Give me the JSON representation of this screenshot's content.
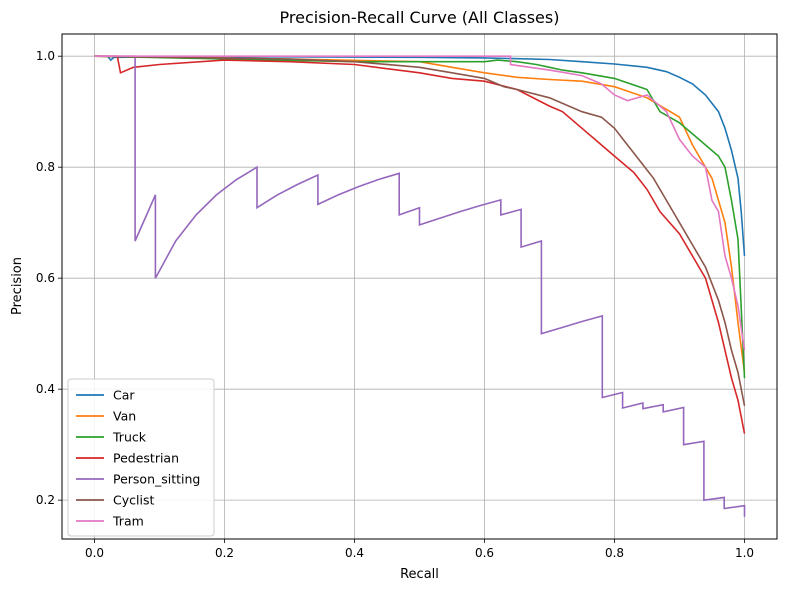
{
  "chart_data": {
    "type": "line",
    "title": "Precision-Recall Curve (All Classes)",
    "xlabel": "Recall",
    "ylabel": "Precision",
    "xlim": [
      -0.05,
      1.05
    ],
    "ylim": [
      0.13,
      1.04
    ],
    "xticks": [
      0.0,
      0.2,
      0.4,
      0.6,
      0.8,
      1.0
    ],
    "xtick_labels": [
      "0.0",
      "0.2",
      "0.4",
      "0.6",
      "0.8",
      "1.0"
    ],
    "yticks": [
      0.2,
      0.4,
      0.6,
      0.8,
      1.0
    ],
    "ytick_labels": [
      "0.2",
      "0.4",
      "0.6",
      "0.8",
      "1.0"
    ],
    "grid": true,
    "legend_position": "lower-left",
    "series": [
      {
        "name": "Car",
        "color": "#1f77b4",
        "x": [
          0.0,
          0.02,
          0.025,
          0.03,
          0.1,
          0.3,
          0.5,
          0.6,
          0.7,
          0.75,
          0.8,
          0.85,
          0.88,
          0.9,
          0.92,
          0.94,
          0.95,
          0.96,
          0.97,
          0.98,
          0.99,
          0.995,
          1.0
        ],
        "y": [
          1.0,
          1.0,
          0.993,
          0.998,
          0.999,
          0.999,
          0.998,
          0.997,
          0.994,
          0.99,
          0.986,
          0.98,
          0.972,
          0.962,
          0.95,
          0.93,
          0.915,
          0.9,
          0.87,
          0.83,
          0.78,
          0.72,
          0.64
        ]
      },
      {
        "name": "Van",
        "color": "#ff7f0e",
        "x": [
          0.0,
          0.3,
          0.5,
          0.55,
          0.6,
          0.65,
          0.7,
          0.75,
          0.8,
          0.85,
          0.9,
          0.92,
          0.95,
          0.97,
          0.98,
          0.99,
          1.0
        ],
        "y": [
          1.0,
          0.995,
          0.99,
          0.98,
          0.97,
          0.962,
          0.958,
          0.955,
          0.945,
          0.925,
          0.89,
          0.84,
          0.78,
          0.7,
          0.62,
          0.52,
          0.43
        ]
      },
      {
        "name": "Truck",
        "color": "#2ca02c",
        "x": [
          0.0,
          0.4,
          0.6,
          0.62,
          0.65,
          0.68,
          0.7,
          0.72,
          0.75,
          0.8,
          0.85,
          0.87,
          0.9,
          0.92,
          0.94,
          0.96,
          0.97,
          0.98,
          0.99,
          1.0
        ],
        "y": [
          1.0,
          0.99,
          0.99,
          0.993,
          0.99,
          0.985,
          0.98,
          0.975,
          0.97,
          0.96,
          0.94,
          0.9,
          0.88,
          0.86,
          0.84,
          0.82,
          0.8,
          0.74,
          0.67,
          0.42
        ]
      },
      {
        "name": "Pedestrian",
        "color": "#d62728",
        "x": [
          0.0,
          0.035,
          0.04,
          0.06,
          0.1,
          0.2,
          0.3,
          0.4,
          0.5,
          0.55,
          0.6,
          0.65,
          0.7,
          0.72,
          0.75,
          0.78,
          0.8,
          0.83,
          0.85,
          0.87,
          0.9,
          0.92,
          0.94,
          0.95,
          0.96,
          0.97,
          0.98,
          0.99,
          1.0
        ],
        "y": [
          1.0,
          1.0,
          0.97,
          0.98,
          0.985,
          0.993,
          0.99,
          0.985,
          0.97,
          0.96,
          0.955,
          0.94,
          0.91,
          0.9,
          0.87,
          0.84,
          0.82,
          0.79,
          0.76,
          0.72,
          0.68,
          0.64,
          0.6,
          0.56,
          0.52,
          0.47,
          0.42,
          0.38,
          0.32
        ]
      },
      {
        "name": "Person_sitting",
        "color": "#9467bd",
        "x": [
          0.0,
          0.06,
          0.0625,
          0.0625,
          0.09375,
          0.09375,
          0.125,
          0.15625,
          0.1875,
          0.21875,
          0.25,
          0.25,
          0.28125,
          0.3125,
          0.34375,
          0.34375,
          0.375,
          0.40625,
          0.4375,
          0.46875,
          0.46875,
          0.5,
          0.5,
          0.53125,
          0.5625,
          0.59375,
          0.625,
          0.625,
          0.65625,
          0.65625,
          0.6875,
          0.6875,
          0.71875,
          0.75,
          0.78125,
          0.78125,
          0.8125,
          0.8125,
          0.84375,
          0.84375,
          0.875,
          0.875,
          0.90625,
          0.90625,
          0.9375,
          0.9375,
          0.96875,
          0.96875,
          1.0,
          1.0
        ],
        "y": [
          1.0,
          1.0,
          1.0,
          0.667,
          0.75,
          0.6,
          0.667,
          0.714,
          0.75,
          0.778,
          0.8,
          0.727,
          0.75,
          0.769,
          0.786,
          0.733,
          0.75,
          0.765,
          0.778,
          0.789,
          0.714,
          0.727,
          0.696,
          0.708,
          0.72,
          0.731,
          0.741,
          0.714,
          0.724,
          0.656,
          0.667,
          0.5,
          0.511,
          0.522,
          0.532,
          0.385,
          0.394,
          0.366,
          0.375,
          0.365,
          0.372,
          0.359,
          0.367,
          0.3,
          0.306,
          0.2,
          0.205,
          0.185,
          0.19,
          0.17
        ]
      },
      {
        "name": "Cyclist",
        "color": "#8c564b",
        "x": [
          0.0,
          0.3,
          0.4,
          0.5,
          0.55,
          0.6,
          0.63,
          0.65,
          0.7,
          0.75,
          0.78,
          0.8,
          0.82,
          0.84,
          0.86,
          0.88,
          0.9,
          0.92,
          0.94,
          0.96,
          0.97,
          0.98,
          0.99,
          1.0
        ],
        "y": [
          1.0,
          0.995,
          0.99,
          0.98,
          0.97,
          0.96,
          0.945,
          0.94,
          0.925,
          0.9,
          0.89,
          0.87,
          0.84,
          0.81,
          0.78,
          0.74,
          0.7,
          0.66,
          0.62,
          0.56,
          0.52,
          0.47,
          0.43,
          0.37
        ]
      },
      {
        "name": "Tram",
        "color": "#e377c2",
        "x": [
          0.0,
          0.4,
          0.64,
          0.64,
          0.7,
          0.75,
          0.78,
          0.8,
          0.82,
          0.85,
          0.88,
          0.9,
          0.92,
          0.94,
          0.95,
          0.96,
          0.97,
          0.98,
          0.99,
          1.0
        ],
        "y": [
          1.0,
          1.0,
          1.0,
          0.985,
          0.975,
          0.965,
          0.95,
          0.93,
          0.92,
          0.93,
          0.9,
          0.85,
          0.82,
          0.8,
          0.74,
          0.72,
          0.64,
          0.6,
          0.55,
          0.47
        ]
      }
    ]
  }
}
